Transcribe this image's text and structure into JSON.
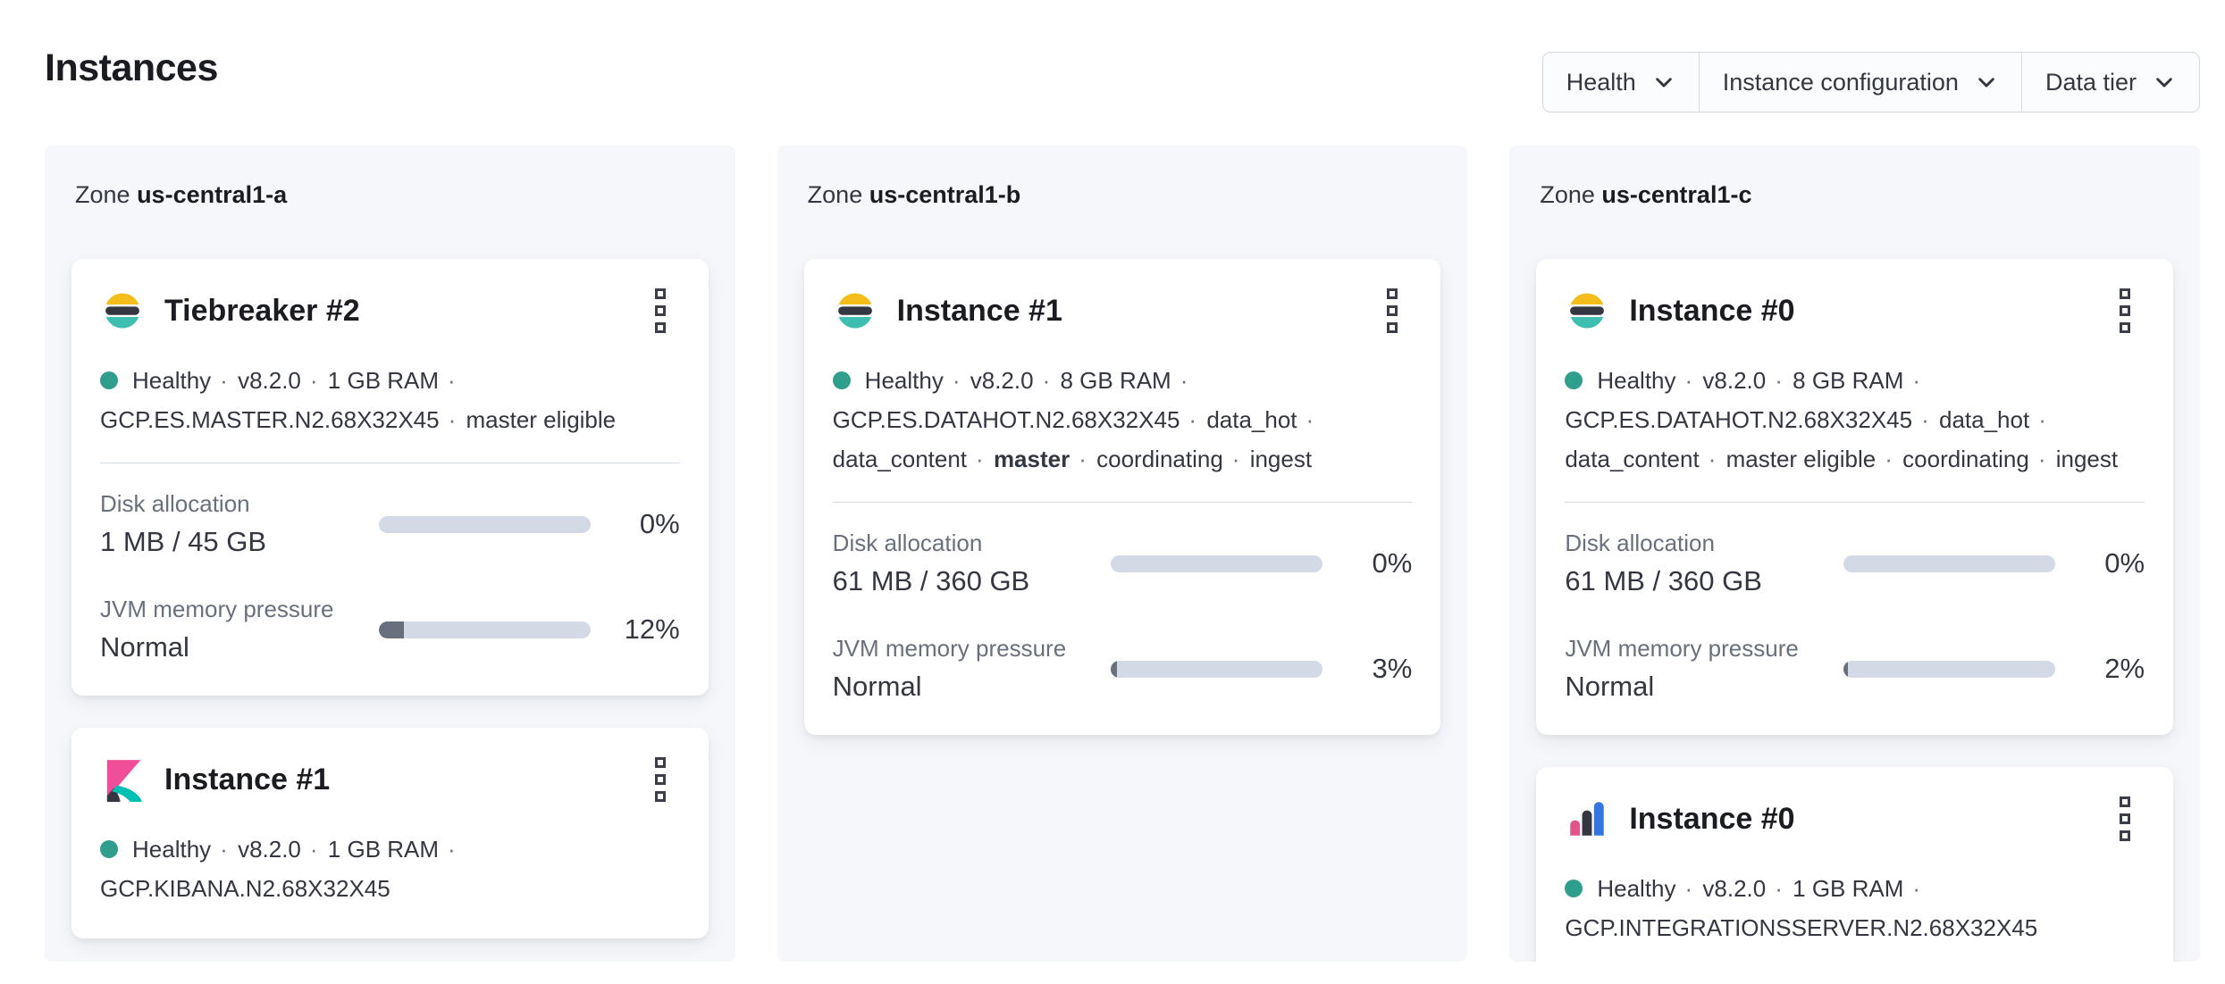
{
  "page": {
    "title": "Instances"
  },
  "separator": "·",
  "filters": [
    {
      "label": "Health"
    },
    {
      "label": "Instance configuration"
    },
    {
      "label": "Data tier"
    }
  ],
  "colors": {
    "health_dot": "#2f9e8d",
    "bar_track": "#d3dae6",
    "bar_fill": "#69707d",
    "panel_bg": "#f5f7fa",
    "elasticsearch_yellow": "#f4bd19",
    "elasticsearch_dark": "#343741",
    "elasticsearch_teal": "#3ebeb0",
    "kibana_pink": "#f04e98",
    "kibana_teal": "#00bfb3",
    "integrations_pink": "#e0568b",
    "integrations_blue": "#3575e0"
  },
  "zones": [
    {
      "label_prefix": "Zone",
      "name": "us-central1-a",
      "cards": [
        {
          "product": "elasticsearch",
          "icon": "elasticsearch-icon",
          "title": "Tiebreaker #2",
          "meta": [
            {
              "text": "Healthy"
            },
            {
              "text": "v8.2.0"
            },
            {
              "text": "1 GB RAM"
            },
            {
              "text": "GCP.ES.MASTER.N2.68X32X45"
            },
            {
              "text": "master eligible"
            }
          ],
          "metrics": [
            {
              "label": "Disk allocation",
              "value": "1 MB / 45 GB",
              "percent": 0,
              "percent_label": "0%"
            },
            {
              "label": "JVM memory pressure",
              "value": "Normal",
              "percent": 12,
              "percent_label": "12%"
            }
          ]
        },
        {
          "product": "kibana",
          "icon": "kibana-icon",
          "title": "Instance #1",
          "meta": [
            {
              "text": "Healthy"
            },
            {
              "text": "v8.2.0"
            },
            {
              "text": "1 GB RAM"
            },
            {
              "text": "GCP.KIBANA.N2.68X32X45"
            }
          ],
          "metrics": null
        }
      ]
    },
    {
      "label_prefix": "Zone",
      "name": "us-central1-b",
      "cards": [
        {
          "product": "elasticsearch",
          "icon": "elasticsearch-icon",
          "title": "Instance #1",
          "meta": [
            {
              "text": "Healthy"
            },
            {
              "text": "v8.2.0"
            },
            {
              "text": "8 GB RAM"
            },
            {
              "text": "GCP.ES.DATAHOT.N2.68X32X45"
            },
            {
              "text": "data_hot"
            },
            {
              "text": "data_content"
            },
            {
              "text": "master",
              "bold": true
            },
            {
              "text": "coordinating"
            },
            {
              "text": "ingest"
            }
          ],
          "metrics": [
            {
              "label": "Disk allocation",
              "value": "61 MB / 360 GB",
              "percent": 0,
              "percent_label": "0%"
            },
            {
              "label": "JVM memory pressure",
              "value": "Normal",
              "percent": 3,
              "percent_label": "3%"
            }
          ]
        }
      ]
    },
    {
      "label_prefix": "Zone",
      "name": "us-central1-c",
      "cards": [
        {
          "product": "elasticsearch",
          "icon": "elasticsearch-icon",
          "title": "Instance #0",
          "meta": [
            {
              "text": "Healthy"
            },
            {
              "text": "v8.2.0"
            },
            {
              "text": "8 GB RAM"
            },
            {
              "text": "GCP.ES.DATAHOT.N2.68X32X45"
            },
            {
              "text": "data_hot"
            },
            {
              "text": "data_content"
            },
            {
              "text": "master eligible"
            },
            {
              "text": "coordinating"
            },
            {
              "text": "ingest"
            }
          ],
          "metrics": [
            {
              "label": "Disk allocation",
              "value": "61 MB / 360 GB",
              "percent": 0,
              "percent_label": "0%"
            },
            {
              "label": "JVM memory pressure",
              "value": "Normal",
              "percent": 2,
              "percent_label": "2%"
            }
          ]
        },
        {
          "product": "integrations_server",
          "icon": "integrations-server-icon",
          "title": "Instance #0",
          "meta": [
            {
              "text": "Healthy"
            },
            {
              "text": "v8.2.0"
            },
            {
              "text": "1 GB RAM"
            },
            {
              "text": "GCP.INTEGRATIONSSERVER.N2.68X32X45"
            }
          ],
          "metrics": null
        }
      ]
    }
  ]
}
